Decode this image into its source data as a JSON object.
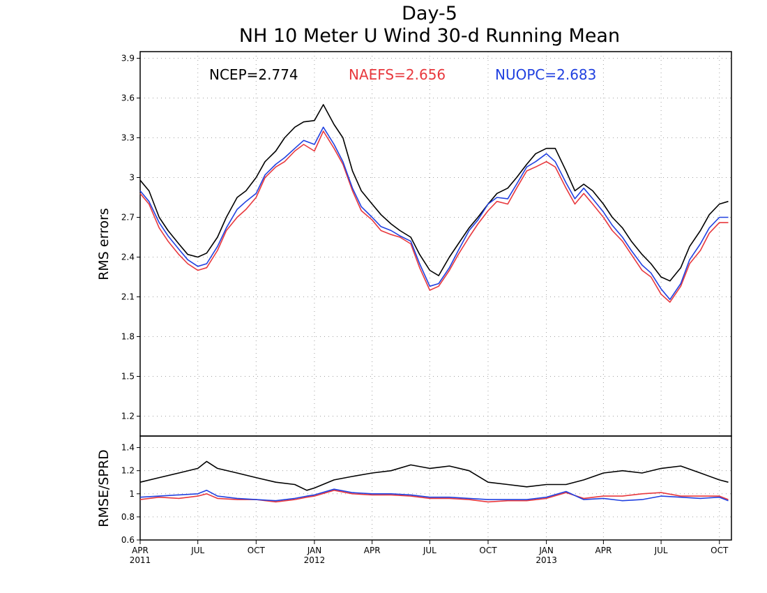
{
  "chart_data": [
    {
      "type": "line",
      "title_line1": "Day-5",
      "title_line2": "NH 10 Meter U Wind 30-d Running Mean",
      "ylabel": "RMS errors",
      "ylim": [
        1.05,
        3.95
      ],
      "yticks": [
        "1.2",
        "1.5",
        "1.8",
        "2.1",
        "2.4",
        "2.7",
        "3",
        "3.3",
        "3.6",
        "3.9"
      ],
      "ytick_values": [
        1.2,
        1.5,
        1.8,
        2.1,
        2.4,
        2.7,
        3.0,
        3.3,
        3.6,
        3.9
      ],
      "grid": true,
      "legend": [
        {
          "text": "NCEP=2.774",
          "color": "#000000"
        },
        {
          "text": "NAEFS=2.656",
          "color": "#e8383d"
        },
        {
          "text": "NUOPC=2.683",
          "color": "#2040e0"
        }
      ],
      "x": [
        "2011-04-01",
        "2011-04-15",
        "2011-05-01",
        "2011-05-15",
        "2011-06-01",
        "2011-06-15",
        "2011-07-01",
        "2011-07-15",
        "2011-08-01",
        "2011-08-15",
        "2011-09-01",
        "2011-09-15",
        "2011-10-01",
        "2011-10-15",
        "2011-11-01",
        "2011-11-15",
        "2011-12-01",
        "2011-12-15",
        "2012-01-01",
        "2012-01-15",
        "2012-02-01",
        "2012-02-15",
        "2012-03-01",
        "2012-03-15",
        "2012-04-01",
        "2012-04-15",
        "2012-05-01",
        "2012-05-15",
        "2012-06-01",
        "2012-06-15",
        "2012-07-01",
        "2012-07-15",
        "2012-08-01",
        "2012-08-15",
        "2012-09-01",
        "2012-09-15",
        "2012-10-01",
        "2012-10-15",
        "2012-11-01",
        "2012-11-15",
        "2012-12-01",
        "2012-12-15",
        "2013-01-01",
        "2013-01-15",
        "2013-02-01",
        "2013-02-15",
        "2013-03-01",
        "2013-03-15",
        "2013-04-01",
        "2013-04-15",
        "2013-05-01",
        "2013-05-15",
        "2013-06-01",
        "2013-06-15",
        "2013-07-01",
        "2013-07-15",
        "2013-08-01",
        "2013-08-15",
        "2013-09-01",
        "2013-09-15",
        "2013-10-01",
        "2013-10-15"
      ],
      "series": [
        {
          "name": "NCEP",
          "color": "#000000",
          "values": [
            2.98,
            2.9,
            2.7,
            2.6,
            2.5,
            2.42,
            2.4,
            2.43,
            2.55,
            2.7,
            2.85,
            2.9,
            3.0,
            3.12,
            3.2,
            3.3,
            3.38,
            3.42,
            3.43,
            3.55,
            3.4,
            3.3,
            3.05,
            2.9,
            2.8,
            2.72,
            2.65,
            2.6,
            2.55,
            2.42,
            2.3,
            2.26,
            2.4,
            2.5,
            2.62,
            2.7,
            2.8,
            2.88,
            2.92,
            3.0,
            3.1,
            3.18,
            3.22,
            3.22,
            3.05,
            2.9,
            2.95,
            2.9,
            2.8,
            2.7,
            2.62,
            2.52,
            2.42,
            2.35,
            2.25,
            2.22,
            2.32,
            2.48,
            2.6,
            2.72,
            2.8,
            2.82
          ]
        },
        {
          "name": "NAEFS",
          "color": "#e8383d",
          "values": [
            2.88,
            2.8,
            2.62,
            2.52,
            2.42,
            2.35,
            2.3,
            2.32,
            2.45,
            2.6,
            2.7,
            2.76,
            2.85,
            3.0,
            3.08,
            3.12,
            3.2,
            3.25,
            3.2,
            3.35,
            3.22,
            3.1,
            2.9,
            2.75,
            2.68,
            2.6,
            2.57,
            2.55,
            2.5,
            2.32,
            2.15,
            2.18,
            2.3,
            2.42,
            2.55,
            2.65,
            2.75,
            2.82,
            2.8,
            2.92,
            3.05,
            3.08,
            3.12,
            3.08,
            2.92,
            2.8,
            2.88,
            2.8,
            2.7,
            2.6,
            2.52,
            2.42,
            2.3,
            2.25,
            2.12,
            2.06,
            2.18,
            2.35,
            2.45,
            2.58,
            2.66,
            2.66
          ]
        },
        {
          "name": "NUOPC",
          "color": "#2040e0",
          "values": [
            2.9,
            2.82,
            2.66,
            2.56,
            2.46,
            2.38,
            2.33,
            2.35,
            2.48,
            2.62,
            2.76,
            2.82,
            2.88,
            3.02,
            3.1,
            3.15,
            3.22,
            3.28,
            3.25,
            3.38,
            3.25,
            3.12,
            2.92,
            2.78,
            2.7,
            2.63,
            2.6,
            2.56,
            2.52,
            2.35,
            2.18,
            2.2,
            2.32,
            2.45,
            2.6,
            2.68,
            2.8,
            2.85,
            2.84,
            2.95,
            3.08,
            3.12,
            3.18,
            3.12,
            2.96,
            2.84,
            2.92,
            2.84,
            2.74,
            2.64,
            2.55,
            2.45,
            2.34,
            2.28,
            2.16,
            2.08,
            2.2,
            2.38,
            2.5,
            2.62,
            2.7,
            2.7
          ]
        }
      ]
    },
    {
      "type": "line",
      "ylabel": "RMSE/SPRD",
      "ylim": [
        0.6,
        1.5
      ],
      "yticks": [
        "0.6",
        "0.8",
        "1",
        "1.2",
        "1.4"
      ],
      "ytick_values": [
        0.6,
        0.8,
        1.0,
        1.2,
        1.4
      ],
      "grid": true,
      "xticks": [
        {
          "label": "APR",
          "year": "2011",
          "date": "2011-04-01"
        },
        {
          "label": "JUL",
          "year": "",
          "date": "2011-07-01"
        },
        {
          "label": "OCT",
          "year": "",
          "date": "2011-10-01"
        },
        {
          "label": "JAN",
          "year": "2012",
          "date": "2012-01-01"
        },
        {
          "label": "APR",
          "year": "",
          "date": "2012-04-01"
        },
        {
          "label": "JUL",
          "year": "",
          "date": "2012-07-01"
        },
        {
          "label": "OCT",
          "year": "",
          "date": "2012-10-01"
        },
        {
          "label": "JAN",
          "year": "2013",
          "date": "2013-01-01"
        },
        {
          "label": "APR",
          "year": "",
          "date": "2013-04-01"
        },
        {
          "label": "JUL",
          "year": "",
          "date": "2013-07-01"
        },
        {
          "label": "OCT",
          "year": "",
          "date": "2013-10-01"
        }
      ],
      "x": [
        "2011-04-01",
        "2011-05-01",
        "2011-06-01",
        "2011-07-01",
        "2011-07-15",
        "2011-08-01",
        "2011-09-01",
        "2011-10-01",
        "2011-11-01",
        "2011-12-01",
        "2011-12-20",
        "2012-01-01",
        "2012-02-01",
        "2012-03-01",
        "2012-04-01",
        "2012-05-01",
        "2012-06-01",
        "2012-07-01",
        "2012-08-01",
        "2012-09-01",
        "2012-10-01",
        "2012-11-01",
        "2012-12-01",
        "2013-01-01",
        "2013-02-01",
        "2013-03-01",
        "2013-04-01",
        "2013-05-01",
        "2013-06-01",
        "2013-07-01",
        "2013-08-01",
        "2013-09-01",
        "2013-10-01",
        "2013-10-15"
      ],
      "series": [
        {
          "name": "NCEP",
          "color": "#000000",
          "values": [
            1.1,
            1.14,
            1.18,
            1.22,
            1.28,
            1.22,
            1.18,
            1.14,
            1.1,
            1.08,
            1.03,
            1.05,
            1.12,
            1.15,
            1.18,
            1.2,
            1.25,
            1.22,
            1.24,
            1.2,
            1.1,
            1.08,
            1.06,
            1.08,
            1.08,
            1.12,
            1.18,
            1.2,
            1.18,
            1.22,
            1.24,
            1.18,
            1.12,
            1.1
          ]
        },
        {
          "name": "NAEFS",
          "color": "#e8383d",
          "values": [
            0.95,
            0.97,
            0.96,
            0.98,
            1.0,
            0.96,
            0.95,
            0.95,
            0.93,
            0.95,
            0.97,
            0.98,
            1.03,
            1.0,
            0.99,
            0.99,
            0.98,
            0.96,
            0.96,
            0.95,
            0.93,
            0.94,
            0.94,
            0.96,
            1.01,
            0.96,
            0.98,
            0.98,
            1.0,
            1.01,
            0.98,
            0.98,
            0.98,
            0.95
          ]
        },
        {
          "name": "NUOPC",
          "color": "#2040e0",
          "values": [
            0.97,
            0.98,
            0.99,
            1.0,
            1.03,
            0.98,
            0.96,
            0.95,
            0.94,
            0.96,
            0.98,
            0.99,
            1.04,
            1.01,
            1.0,
            1.0,
            0.99,
            0.97,
            0.97,
            0.96,
            0.95,
            0.95,
            0.95,
            0.97,
            1.02,
            0.95,
            0.96,
            0.94,
            0.95,
            0.98,
            0.97,
            0.96,
            0.97,
            0.94
          ]
        }
      ]
    }
  ]
}
